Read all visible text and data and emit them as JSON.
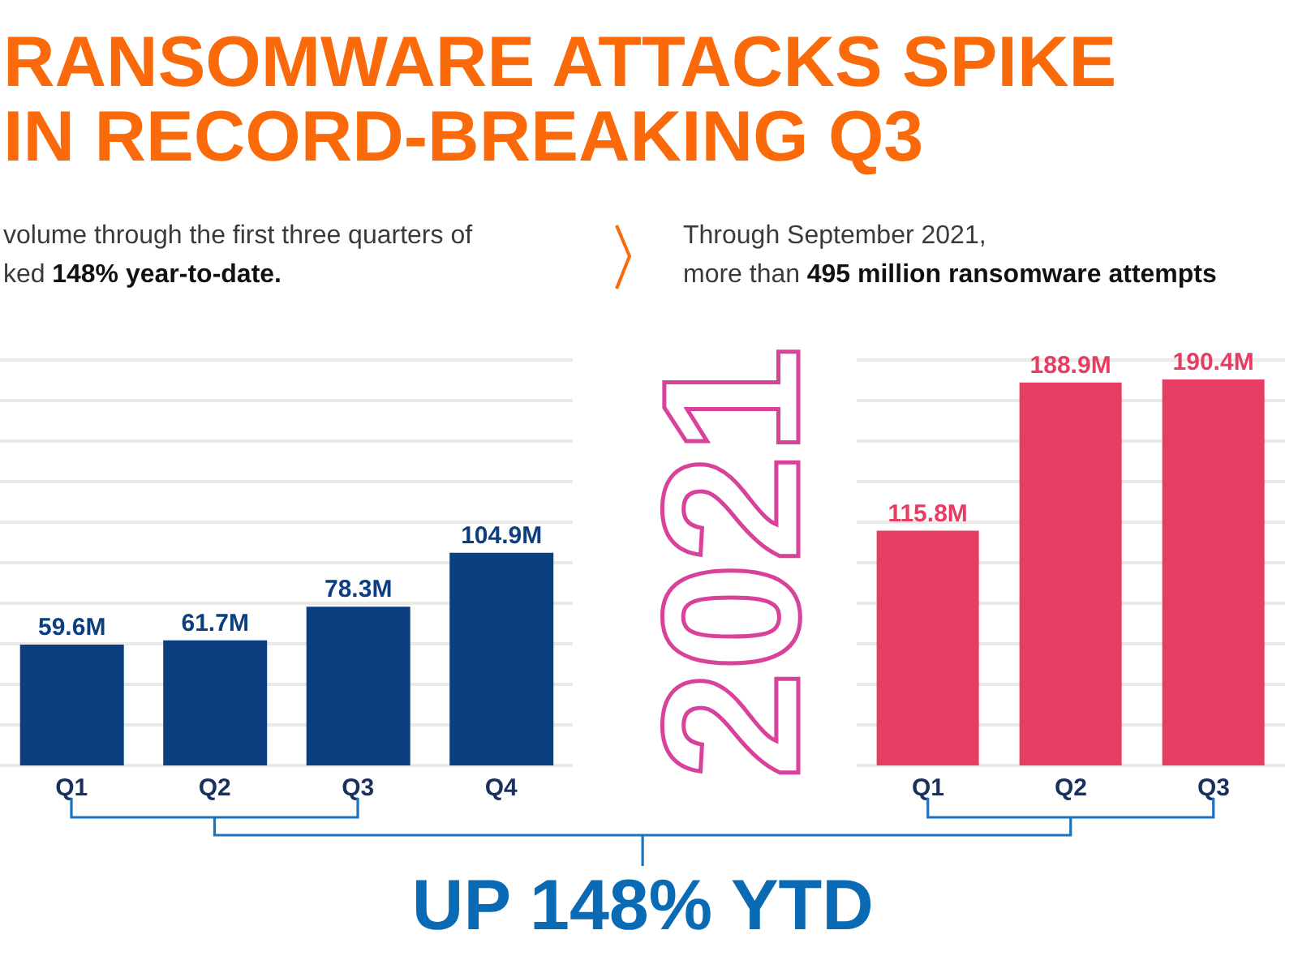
{
  "chart_data": [
    {
      "type": "bar",
      "title": "RANSOMWARE ATTACKS SPIKE IN RECORD-BREAKING Q3",
      "annotations": [
        "volume through the first three quarters of",
        "ked",
        "148% year-to-date.",
        "UP 148% YTD"
      ],
      "categories": [
        "Q1",
        "Q2",
        "Q3",
        "Q4"
      ],
      "values": [
        59.6,
        61.7,
        78.3,
        104.9
      ],
      "value_labels": [
        "59.6M",
        "61.7M",
        "78.3M",
        "104.9M"
      ],
      "color": "#0c3f80",
      "ylim": [
        0,
        200
      ],
      "grid": "y",
      "tick_labels": "x"
    },
    {
      "type": "bar",
      "title": "2021",
      "annotations": [
        "Through September 2021,",
        "more than",
        "495 million ransomware attempts"
      ],
      "categories": [
        "Q1",
        "Q2",
        "Q3"
      ],
      "values": [
        115.8,
        188.9,
        190.4
      ],
      "value_labels": [
        "115.8M",
        "188.9M",
        "190.4M"
      ],
      "color": "#e53e62",
      "ylim": [
        0,
        200
      ],
      "grid": "y",
      "tick_labels": "x"
    }
  ]
}
